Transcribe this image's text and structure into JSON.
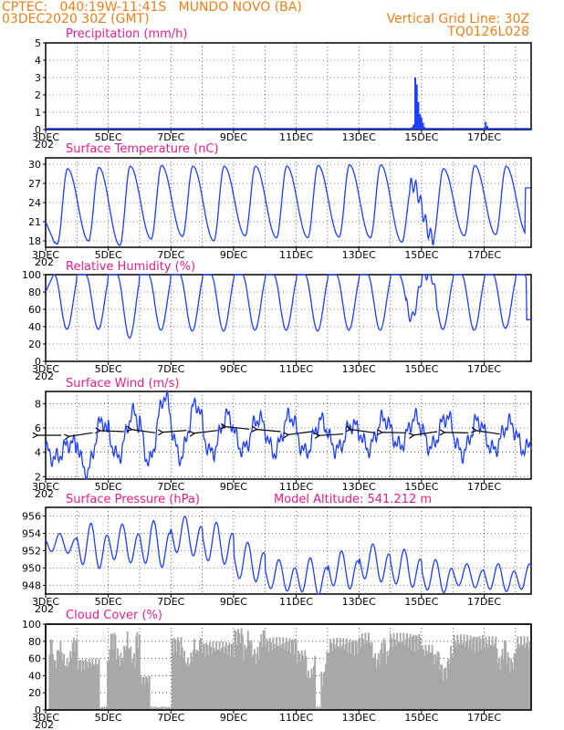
{
  "header": {
    "line1": "CPTEC:   040:19W-11:41S   MUNDO NOVO (BA)",
    "line2": "03DEC2020 30Z (GMT)",
    "grid_note": "Vertical Grid Line: 30Z",
    "code": "TQ0126L028"
  },
  "colors": {
    "series": "#1f3fff",
    "title": "#e0208a",
    "header": "#e8801a",
    "cloud": "#a8a8a8",
    "wind_arrow": "#000000"
  },
  "x_axis": {
    "labels": [
      "3DEC",
      "5DEC",
      "7DEC",
      "9DEC",
      "11DEC",
      "13DEC",
      "15DEC",
      "17DEC"
    ],
    "year_fragment": "202"
  },
  "panels": {
    "precipitation": {
      "title": "Precipitation (mm/h)"
    },
    "temperature": {
      "title": "Surface Temperature (nC)"
    },
    "humidity": {
      "title": "Relative Humidity (%)"
    },
    "wind": {
      "title": "Surface Wind (m/s)"
    },
    "pressure": {
      "title": "Surface Pressure (hPa)",
      "extra": "Model Altitude: 541.212 m"
    },
    "cloud": {
      "title": "Cloud Cover (%)"
    }
  },
  "chart_data": [
    {
      "type": "bar",
      "id": "precip",
      "title": "Precipitation (mm/h)",
      "ylim": [
        0,
        5
      ],
      "yticks": [
        "0",
        "1",
        "2",
        "3",
        "4",
        "5"
      ],
      "x_unit": "days since 3DEC",
      "x_range": [
        0,
        15.5
      ],
      "points": [
        [
          11.7,
          0.15
        ],
        [
          11.75,
          0.3
        ],
        [
          11.8,
          3.0
        ],
        [
          11.85,
          2.6
        ],
        [
          11.9,
          1.6
        ],
        [
          11.95,
          0.9
        ],
        [
          12.0,
          0.7
        ],
        [
          12.05,
          0.4
        ],
        [
          12.1,
          0.15
        ],
        [
          14.0,
          0.1
        ],
        [
          14.05,
          0.45
        ],
        [
          14.1,
          0.2
        ]
      ]
    },
    {
      "type": "line",
      "id": "temp",
      "title": "Surface Temperature (nC)",
      "ylim": [
        17,
        31
      ],
      "yticks": [
        "18",
        "21",
        "24",
        "27",
        "30"
      ],
      "minima": [
        17.5,
        18.0,
        17.3,
        18.3,
        18.7,
        18.0,
        18.8,
        18.5,
        18.5,
        18.6,
        18.5,
        17.8,
        18.5,
        18.8,
        19.0
      ],
      "maxima": [
        29.3,
        29.5,
        29.7,
        29.8,
        29.7,
        29.7,
        29.7,
        29.7,
        29.8,
        29.9,
        29.9,
        26.9,
        29.3,
        29.8,
        29.7
      ],
      "end_value": 26.3
    },
    {
      "type": "line",
      "id": "rh",
      "title": "Relative Humidity (%)",
      "ylim": [
        0,
        100
      ],
      "yticks": [
        "0",
        "20",
        "40",
        "60",
        "80",
        "100"
      ],
      "minima": [
        37,
        37,
        27,
        36,
        35,
        35,
        36,
        36,
        35,
        36,
        36,
        50,
        37,
        36,
        38
      ],
      "maxima": [
        100,
        100,
        100,
        100,
        100,
        100,
        100,
        100,
        100,
        100,
        100,
        100,
        100,
        100,
        100
      ],
      "end_value": 48
    },
    {
      "type": "line",
      "id": "wind",
      "title": "Surface Wind (m/s)",
      "ylim": [
        1.8,
        9
      ],
      "yticks": [
        "2",
        "4",
        "6",
        "8"
      ],
      "highs": [
        4.8,
        6.6,
        7.2,
        8.6,
        8.0,
        7.0,
        6.8,
        7.0,
        6.6,
        6.3,
        6.8,
        6.8,
        6.9,
        6.6,
        6.4
      ],
      "lows": [
        3.5,
        2.3,
        3.6,
        3.2,
        3.6,
        3.9,
        4.2,
        4.0,
        4.0,
        4.2,
        4.3,
        4.5,
        4.4,
        3.9,
        4.2
      ],
      "arrows": [
        {
          "dir": "west",
          "speed": 5.4
        },
        {
          "dir": "west",
          "speed": 5.6
        },
        {
          "dir": "west",
          "speed": 5.7
        },
        {
          "dir": "west",
          "speed": 5.6
        },
        {
          "dir": "west",
          "speed": 5.8
        },
        {
          "dir": "west",
          "speed": 5.8
        },
        {
          "dir": "west",
          "speed": 5.9
        },
        {
          "dir": "west",
          "speed": 5.7
        },
        {
          "dir": "west",
          "speed": 5.7
        },
        {
          "dir": "west",
          "speed": 5.5
        },
        {
          "dir": "west",
          "speed": 5.6
        },
        {
          "dir": "west",
          "speed": 5.6
        },
        {
          "dir": "west",
          "speed": 5.7
        },
        {
          "dir": "west",
          "speed": 5.6
        },
        {
          "dir": "west",
          "speed": 5.5
        }
      ]
    },
    {
      "type": "line",
      "id": "pres",
      "title": "Surface Pressure (hPa)",
      "ylim": [
        947,
        957
      ],
      "yticks": [
        "948",
        "950",
        "952",
        "954",
        "956"
      ],
      "maxima": [
        954.0,
        955.2,
        955.1,
        955.5,
        956.0,
        955.3,
        953.0,
        951.0,
        951.2,
        952.0,
        952.8,
        952.2,
        951.0,
        950.5,
        950.5
      ],
      "minima": [
        951.5,
        949.5,
        950.2,
        949.6,
        951.0,
        950.0,
        948.0,
        947.0,
        946.5,
        947.2,
        948.0,
        947.4,
        946.8,
        947.5,
        947.0
      ]
    },
    {
      "type": "area",
      "id": "cloud",
      "title": "Cloud Cover (%)",
      "ylim": [
        0,
        100
      ],
      "yticks": [
        "0",
        "20",
        "40",
        "60",
        "80",
        "100"
      ],
      "daily_levels": [
        85,
        60,
        92,
        40,
        86,
        80,
        96,
        85,
        70,
        84,
        90,
        90,
        76,
        88,
        86
      ],
      "clear_gaps": [
        [
          1.7,
          1.95
        ],
        [
          3.3,
          4.0
        ],
        [
          8.6,
          8.75
        ]
      ]
    }
  ]
}
